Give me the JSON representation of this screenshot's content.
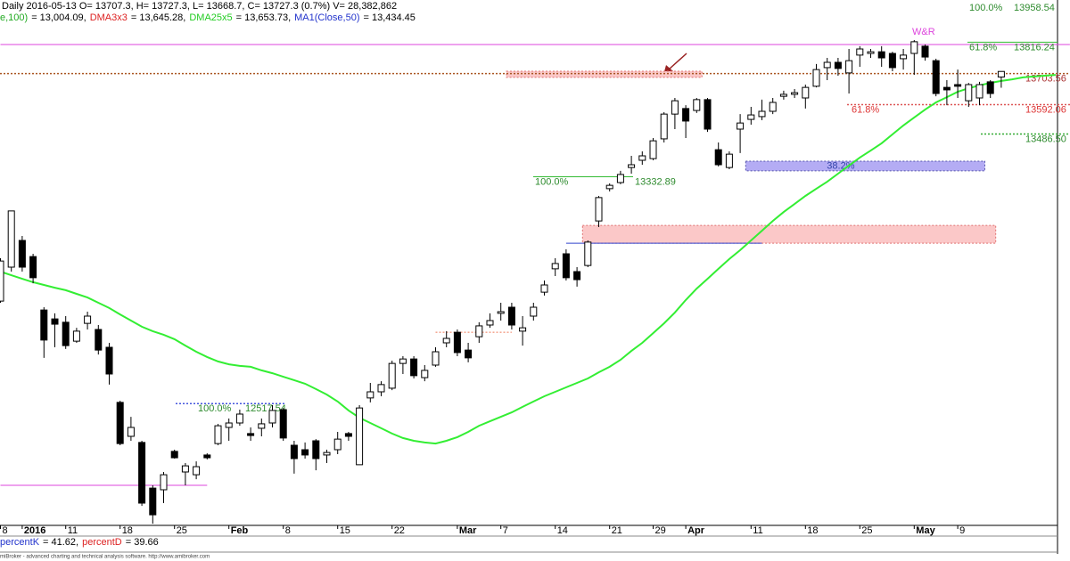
{
  "chart_data": {
    "type": "candlestick",
    "header": "Daily 2016-05-13 O= 13707.3, H= 13727.3, L= 13668.7, C= 13727.3 (0.7%) V= 28,382,862",
    "indicators": [
      {
        "text": "e,100)",
        "color": "#22aa22"
      },
      {
        "text": "= 13,004.09,",
        "color": "#000000"
      },
      {
        "text": "DMA3x3",
        "color": "#dd2222"
      },
      {
        "text": "= 13,645.28,",
        "color": "#000000"
      },
      {
        "text": "DMA25x5",
        "color": "#22cc22"
      },
      {
        "text": "= 13,653.73,",
        "color": "#000000"
      },
      {
        "text": "MA1(Close,50)",
        "color": "#2233cc"
      },
      {
        "text": "= 13,434.45",
        "color": "#000000"
      }
    ],
    "oscillator": [
      {
        "text": "percentK",
        "color": "#2233cc"
      },
      {
        "text": "= 41.62,",
        "color": "#000000"
      },
      {
        "text": "percentD",
        "color": "#dd2222"
      },
      {
        "text": "= 39.66",
        "color": "#000000"
      }
    ],
    "footer": "miBroker - advanced charting and technical analysis software. http://www.amibroker.com",
    "ylim": [
      12096,
      13984
    ],
    "categories": [
      "8",
      null,
      "2016",
      null,
      null,
      null,
      "11",
      null,
      null,
      null,
      null,
      "18",
      null,
      null,
      null,
      null,
      "25",
      null,
      null,
      null,
      null,
      "Feb",
      null,
      null,
      null,
      null,
      "8",
      null,
      null,
      null,
      null,
      "15",
      null,
      null,
      null,
      null,
      "22",
      null,
      null,
      null,
      null,
      null,
      "Mar",
      null,
      null,
      null,
      "7",
      null,
      null,
      null,
      null,
      "14",
      null,
      null,
      null,
      null,
      "21",
      null,
      null,
      null,
      "29",
      null,
      null,
      "Apr",
      null,
      null,
      null,
      null,
      null,
      "11",
      null,
      null,
      null,
      null,
      "18",
      null,
      null,
      null,
      null,
      "25",
      null,
      null,
      null,
      null,
      "May",
      null,
      null,
      null,
      "9",
      null,
      null,
      null,
      null,
      null,
      null,
      null,
      null,
      null
    ],
    "open": [
      12902,
      13024,
      13120,
      13062,
      12870,
      12838,
      12826,
      12758,
      12822,
      12800,
      12736,
      12538,
      12416,
      12394,
      12230,
      12224,
      12362,
      12288,
      12278,
      12349,
      12390,
      12448,
      12464,
      12426,
      12445,
      12464,
      12512,
      12384,
      12368,
      12400,
      12349,
      12368,
      12426,
      12314,
      12554,
      12576,
      12589,
      12678,
      12694,
      12627,
      12672,
      12752,
      12790,
      12726,
      12774,
      12816,
      12858,
      12880,
      12794,
      12848,
      12934,
      13018,
      13072,
      13008,
      13030,
      13190,
      13306,
      13328,
      13382,
      13408,
      13414,
      13485,
      13574,
      13594,
      13587,
      13626,
      13446,
      13382,
      13520,
      13555,
      13565,
      13584,
      13638,
      13645,
      13632,
      13674,
      13741,
      13760,
      13722,
      13786,
      13792,
      13798,
      13792,
      13773,
      13792,
      13818,
      13766,
      13670,
      13680,
      13622,
      13632,
      13690,
      13707.3,
      null,
      null,
      null,
      null,
      null
    ],
    "high": [
      13056,
      13226,
      13136,
      13072,
      12880,
      12858,
      12848,
      12806,
      12864,
      12816,
      12752,
      12544,
      12486,
      12400,
      12240,
      12288,
      12368,
      12320,
      12326,
      12355,
      12461,
      12480,
      12512,
      12448,
      12480,
      12528,
      12518,
      12400,
      12394,
      12406,
      12368,
      12432,
      12432,
      12528,
      12608,
      12614,
      12688,
      12704,
      12704,
      12672,
      12736,
      12794,
      12800,
      12752,
      12826,
      12858,
      12896,
      12896,
      12848,
      12896,
      12976,
      13056,
      13088,
      13024,
      13120,
      13280,
      13325,
      13370,
      13424,
      13440,
      13488,
      13581,
      13632,
      13606,
      13632,
      13632,
      13472,
      13440,
      13574,
      13600,
      13626,
      13632,
      13658,
      13664,
      13680,
      13754,
      13776,
      13776,
      13808,
      13818,
      13808,
      13818,
      13798,
      13808,
      13840,
      13824,
      13773,
      13696,
      13734,
      13686,
      13690,
      13696,
      13727.3,
      null,
      null,
      null,
      null,
      null
    ],
    "low": [
      12896,
      13008,
      13008,
      12966,
      12698,
      12736,
      12730,
      12752,
      12800,
      12710,
      12602,
      12384,
      12400,
      12166,
      12102,
      12176,
      12336,
      12240,
      12262,
      12333,
      12384,
      12400,
      12454,
      12400,
      12416,
      12448,
      12400,
      12282,
      12336,
      12294,
      12320,
      12352,
      12400,
      12314,
      12538,
      12560,
      12582,
      12640,
      12624,
      12614,
      12666,
      12736,
      12704,
      12682,
      12752,
      12806,
      12832,
      12800,
      12742,
      12832,
      12922,
      12992,
      12976,
      12954,
      13024,
      13168,
      13296,
      13322,
      13360,
      13392,
      13408,
      13472,
      13520,
      13488,
      13578,
      13510,
      13386,
      13376,
      13434,
      13536,
      13552,
      13574,
      13626,
      13632,
      13594,
      13670,
      13696,
      13712,
      13648,
      13744,
      13776,
      13744,
      13728,
      13734,
      13715,
      13766,
      13638,
      13606,
      13632,
      13600,
      13606,
      13632,
      13668.7,
      null,
      null,
      null,
      null,
      null
    ],
    "close": [
      13046,
      13226,
      13024,
      12986,
      12762,
      12819,
      12742,
      12794,
      12848,
      12726,
      12640,
      12390,
      12448,
      12176,
      12134,
      12278,
      12339,
      12310,
      12307,
      12339,
      12454,
      12464,
      12496,
      12419,
      12461,
      12509,
      12410,
      12336,
      12349,
      12336,
      12358,
      12406,
      12416,
      12518,
      12576,
      12602,
      12678,
      12694,
      12634,
      12653,
      12720,
      12768,
      12717,
      12698,
      12813,
      12832,
      12864,
      12816,
      12806,
      12880,
      12960,
      13037,
      12986,
      12979,
      13114,
      13274,
      13318,
      13357,
      13392,
      13424,
      13478,
      13574,
      13622,
      13549,
      13626,
      13520,
      13392,
      13430,
      13542,
      13571,
      13584,
      13616,
      13645,
      13651,
      13670,
      13734,
      13760,
      13738,
      13766,
      13808,
      13798,
      13776,
      13741,
      13786,
      13834,
      13779,
      13648,
      13661,
      13674,
      13680,
      13680,
      13648,
      13727.3,
      null,
      null,
      null,
      null,
      null
    ],
    "overlay": {
      "color": "#33ee33",
      "values": [
        13008,
        12995,
        12982,
        12970,
        12960,
        12950,
        12941,
        12928,
        12915,
        12896,
        12877,
        12854,
        12832,
        12810,
        12794,
        12781,
        12765,
        12742,
        12720,
        12701,
        12685,
        12675,
        12669,
        12666,
        12653,
        12643,
        12630,
        12618,
        12605,
        12586,
        12566,
        12541,
        12509,
        12483,
        12464,
        12445,
        12426,
        12410,
        12400,
        12394,
        12390,
        12400,
        12413,
        12432,
        12454,
        12470,
        12486,
        12502,
        12522,
        12541,
        12560,
        12576,
        12592,
        12608,
        12624,
        12646,
        12666,
        12691,
        12723,
        12752,
        12787,
        12822,
        12861,
        12906,
        12947,
        12982,
        13018,
        13053,
        13085,
        13120,
        13155,
        13190,
        13222,
        13251,
        13280,
        13306,
        13331,
        13360,
        13389,
        13418,
        13443,
        13469,
        13501,
        13533,
        13562,
        13590,
        13616,
        13635,
        13654,
        13667,
        13677,
        13686,
        13693,
        13699,
        13706,
        13709,
        13712,
        13715
      ]
    },
    "zones": [
      {
        "y": [
          13110,
          13174
        ],
        "x": [
          54,
          91
        ],
        "color": "#fbc8c8",
        "stroke": "#e07070"
      },
      {
        "y": [
          13706,
          13728
        ],
        "x": [
          47,
          64
        ],
        "color": "#fbc8c8",
        "stroke": "#e07070"
      },
      {
        "y": [
          13370,
          13405
        ],
        "x": [
          69,
          90
        ],
        "color": "#b4acf4",
        "stroke": "#5555aa",
        "label": "38.2%"
      }
    ],
    "lines": [
      {
        "value": 13824,
        "x": [
          0,
          97
        ],
        "color": "#dd44dd"
      },
      {
        "value": 12240,
        "x": [
          0,
          19
        ],
        "color": "#dd44dd"
      },
      {
        "value": 13110,
        "x": [
          52,
          70
        ],
        "color": "#3344cc"
      },
      {
        "value": 12790,
        "x": [
          40,
          47
        ],
        "color": "#ee7755",
        "dashed": true
      }
    ],
    "fib": [
      {
        "pct": "100.0%",
        "value": 13958.54,
        "color": "#2e8b2e"
      },
      {
        "pct": "61.8%",
        "value": 13816.24,
        "color": "#2e8b2e",
        "line_color": "#33bb33"
      },
      {
        "value": 13703.56,
        "color": "#aa3333",
        "line_color": "#aa5522",
        "dashed": true
      },
      {
        "pct": "61.8%",
        "value": 13592.06,
        "color": "#dd3333",
        "line_color": "#dd5555",
        "dashed": true
      },
      {
        "value": {
          "value": 13486.5,
          "label": "13486.50"
        },
        "color": "#2e8b2e",
        "line_color": "#33aa33",
        "dashed": true
      },
      {
        "pct": "100.0%",
        "value": 13332.89,
        "color": "#2e8b2e",
        "line_color": "#33bb33"
      },
      {
        "pct": "100.0%",
        "value": 12517.54,
        "color": "#2e8b2e",
        "line_color": "#4455dd",
        "dashed": true
      }
    ],
    "annotations": [
      {
        "text": "W&R",
        "color": "#dd44dd"
      }
    ]
  }
}
